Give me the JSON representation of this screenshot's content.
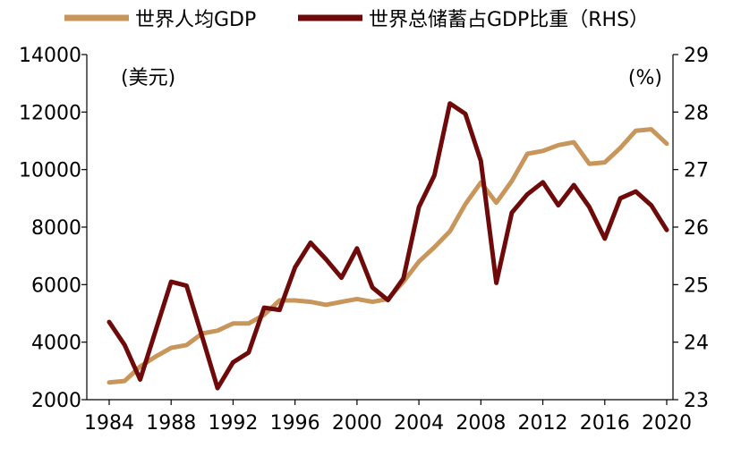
{
  "chart_data": {
    "type": "line",
    "title": "",
    "left_axis_unit": "(美元)",
    "right_axis_unit": "(%)",
    "y_left": {
      "min": 2000,
      "max": 14000,
      "ticks": [
        2000,
        4000,
        6000,
        8000,
        10000,
        12000,
        14000
      ]
    },
    "y_right": {
      "min": 23,
      "max": 29,
      "ticks": [
        23,
        24,
        25,
        26,
        27,
        28,
        29
      ]
    },
    "x_ticks": [
      1984,
      1988,
      1992,
      1996,
      2000,
      2004,
      2008,
      2012,
      2016,
      2020
    ],
    "years": [
      1984,
      1985,
      1986,
      1987,
      1988,
      1989,
      1990,
      1991,
      1992,
      1993,
      1994,
      1995,
      1996,
      1997,
      1998,
      1999,
      2000,
      2001,
      2002,
      2003,
      2004,
      2005,
      2006,
      2007,
      2008,
      2009,
      2010,
      2011,
      2012,
      2013,
      2014,
      2015,
      2016,
      2017,
      2018,
      2019,
      2020
    ],
    "series": [
      {
        "name": "世界人均GDP",
        "axis": "left",
        "color": "#C8955A",
        "values": [
          2600,
          2650,
          3150,
          3500,
          3800,
          3900,
          4300,
          4400,
          4650,
          4650,
          4950,
          5450,
          5450,
          5400,
          5300,
          5400,
          5500,
          5400,
          5500,
          6100,
          6800,
          7300,
          7850,
          8800,
          9550,
          8850,
          9600,
          10550,
          10650,
          10850,
          10950,
          10200,
          10250,
          10750,
          11350,
          11400,
          10900
        ]
      },
      {
        "name": "世界总储蓄占GDP比重（RHS）",
        "axis": "right",
        "color": "#6E0A0A",
        "values": [
          24.35,
          23.95,
          23.35,
          24.2,
          25.05,
          24.98,
          24.1,
          23.2,
          23.65,
          23.82,
          24.6,
          24.56,
          25.3,
          25.73,
          25.44,
          25.12,
          25.63,
          24.95,
          24.73,
          25.11,
          26.35,
          26.9,
          28.15,
          27.97,
          27.15,
          25.03,
          26.25,
          26.57,
          26.78,
          26.38,
          26.73,
          26.35,
          25.8,
          26.5,
          26.62,
          26.38,
          25.95
        ]
      }
    ]
  }
}
